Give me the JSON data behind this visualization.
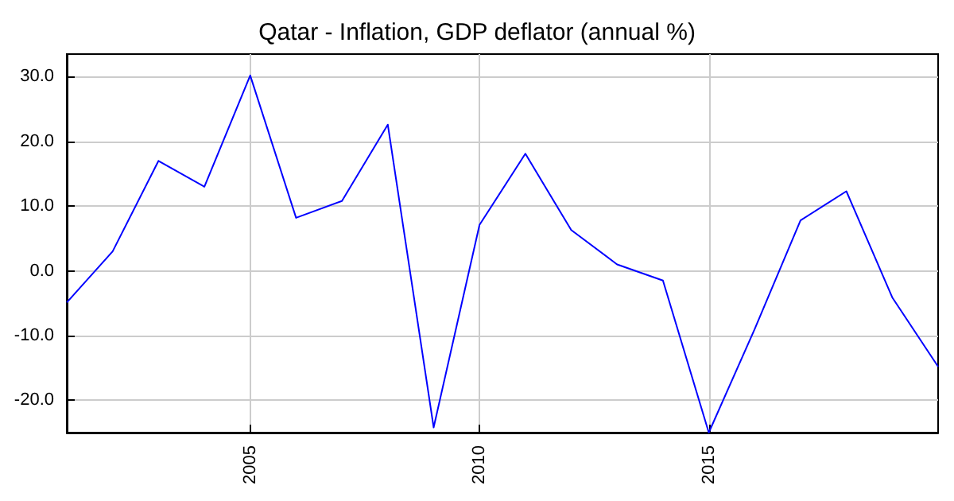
{
  "chart_data": {
    "type": "line",
    "title": "Qatar - Inflation, GDP deflator (annual %)",
    "x": [
      2001,
      2002,
      2003,
      2004,
      2005,
      2006,
      2007,
      2008,
      2009,
      2010,
      2011,
      2012,
      2013,
      2014,
      2015,
      2016,
      2017,
      2018,
      2019,
      2020
    ],
    "series": [
      {
        "color": "#0000ff",
        "values": [
          -4.9,
          3.0,
          17.0,
          13.0,
          30.2,
          8.2,
          10.8,
          22.6,
          -24.2,
          7.1,
          18.1,
          6.3,
          1.0,
          -1.5,
          -25.0,
          -9.0,
          7.8,
          12.3,
          -4.1,
          -14.8
        ]
      }
    ],
    "xlim": [
      2001,
      2020
    ],
    "xticks": [
      2005,
      2010,
      2015
    ],
    "ylim": [
      -25,
      33.5
    ],
    "yticks": [
      {
        "value": -20,
        "label": "-20.0"
      },
      {
        "value": -10,
        "label": "-10.0"
      },
      {
        "value": 0,
        "label": "0.0"
      },
      {
        "value": 10,
        "label": "10.0"
      },
      {
        "value": 20,
        "label": "20.0"
      },
      {
        "value": 30,
        "label": "30.0"
      }
    ],
    "grid": true,
    "marker": "none",
    "line_style": "solid"
  }
}
